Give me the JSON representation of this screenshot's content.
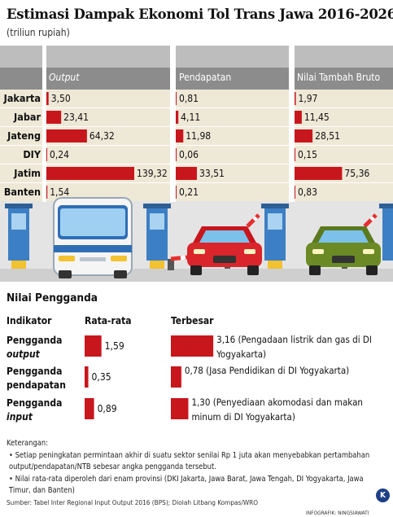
{
  "title": "Estimasi Dampak Ekonomi Tol Trans Jawa 2016-2026",
  "subtitle": "(triliun rupiah)",
  "colors": {
    "bar": "#c8161d",
    "header_band": "#8c8c8c",
    "row_band": "#eee8d6",
    "road": "#dcdcdc"
  },
  "chart_data": [
    {
      "type": "bar",
      "orientation": "horizontal",
      "unit": "triliun rupiah",
      "categories": [
        "Jakarta",
        "Jabar",
        "Jateng",
        "DIY",
        "Jatim",
        "Banten"
      ],
      "series": [
        {
          "name": "Output",
          "values": [
            3.5,
            23.41,
            64.32,
            0.24,
            139.32,
            1.54
          ],
          "labels": [
            "3,50",
            "23,41",
            "64,32",
            "0,24",
            "139,32",
            "1,54"
          ]
        },
        {
          "name": "Pendapatan",
          "values": [
            0.81,
            4.11,
            11.98,
            0.06,
            33.51,
            0.21
          ],
          "labels": [
            "0,81",
            "4,11",
            "11,98",
            "0,06",
            "33,51",
            "0,21"
          ]
        },
        {
          "name": "Nilai Tambah Bruto",
          "values": [
            1.97,
            11.45,
            28.51,
            0.15,
            75.36,
            0.83
          ],
          "labels": [
            "1,97",
            "11,45",
            "28,51",
            "0,15",
            "75,36",
            "0,83"
          ]
        }
      ]
    },
    {
      "type": "bar",
      "orientation": "horizontal",
      "title": "Nilai Pengganda",
      "headers": [
        "Indikator",
        "Rata-rata",
        "Terbesar"
      ],
      "rows": [
        {
          "label_line1": "Pengganda",
          "label_line2": "output",
          "average": 1.59,
          "average_label": "1,59",
          "largest": 3.16,
          "largest_label": "3,16",
          "largest_desc": "(Pengadaan listrik dan gas di DI Yogyakarta)"
        },
        {
          "label_line1": "Pengganda",
          "label_line2": "pendapatan",
          "average": 0.35,
          "average_label": "0,35",
          "largest": 0.78,
          "largest_label": "0,78",
          "largest_desc": "(Jasa Pendidikan di DI Yogyakarta)"
        },
        {
          "label_line1": "Pengganda",
          "label_line2": "input",
          "average": 0.89,
          "average_label": "0,89",
          "largest": 1.3,
          "largest_label": "1,30",
          "largest_desc": "(Penyediaan akomodasi dan makan minum di DI Yogyakarta)"
        }
      ]
    }
  ],
  "notes": {
    "heading": "Keterangan:",
    "items": [
      "• Setiap peningkatan permintaan akhir di suatu sektor senilai Rp 1 juta akan menyebabkan pertambahan output/pendapatan/NTB sebesar angka pengganda tersebut.",
      "• Nilai rata-rata diperoleh dari enam provinsi (DKI Jakarta, Jawa Barat, Jawa Tengah, DI Yogyakarta, Jawa Timur, dan Banten)"
    ]
  },
  "source": "Sumber: Tabel Inter Regional Input Output 2016 (BPS); Diolah Litbang Kompas/WRO",
  "credit": "INFOGRAFIK: NINGSIAWATI",
  "logo_letter": "K"
}
